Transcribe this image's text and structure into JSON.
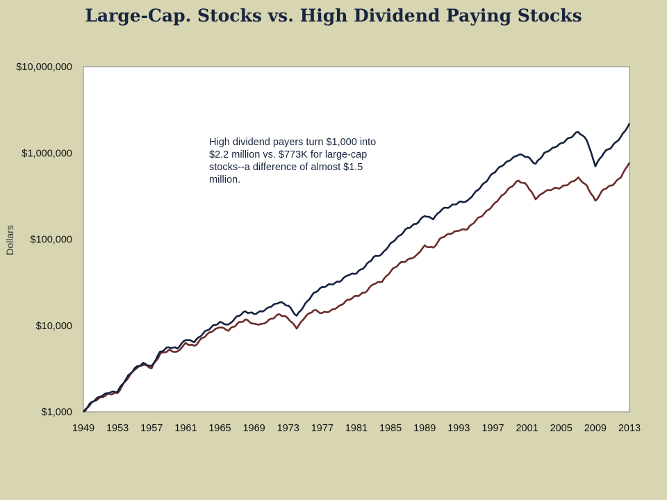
{
  "chart_data": {
    "type": "line",
    "title": "Large-Cap. Stocks vs. High Dividend Paying Stocks",
    "xlabel": "",
    "ylabel": "Dollars",
    "yscale": "log",
    "ylim": [
      1000,
      10000000
    ],
    "xlim": [
      1949,
      2013
    ],
    "x_ticks": [
      "1949",
      "1953",
      "1957",
      "1961",
      "1965",
      "1969",
      "1973",
      "1977",
      "1981",
      "1985",
      "1989",
      "1993",
      "1997",
      "2001",
      "2005",
      "2009",
      "2013"
    ],
    "y_ticks": [
      {
        "value": 1000,
        "label": "$1,000"
      },
      {
        "value": 10000,
        "label": "$10,000"
      },
      {
        "value": 100000,
        "label": "$100,000"
      },
      {
        "value": 1000000,
        "label": "$1,000,000"
      },
      {
        "value": 10000000,
        "label": "$10,000,000"
      }
    ],
    "grid": false,
    "annotation": "High dividend payers turn $1,000 into $2.2 million vs. $773K for large-cap stocks--a difference of almost $1.5 million.",
    "series": [
      {
        "color": "#14223d",
        "points": [
          [
            1949,
            1000
          ],
          [
            1950,
            1300
          ],
          [
            1951,
            1500
          ],
          [
            1952,
            1650
          ],
          [
            1953,
            1700
          ],
          [
            1954,
            2400
          ],
          [
            1955,
            3200
          ],
          [
            1956,
            3700
          ],
          [
            1957,
            3400
          ],
          [
            1958,
            5000
          ],
          [
            1959,
            5600
          ],
          [
            1960,
            5400
          ],
          [
            1961,
            6800
          ],
          [
            1962,
            6400
          ],
          [
            1963,
            8000
          ],
          [
            1964,
            9600
          ],
          [
            1965,
            11000
          ],
          [
            1966,
            10300
          ],
          [
            1967,
            12800
          ],
          [
            1968,
            14600
          ],
          [
            1969,
            13600
          ],
          [
            1970,
            14500
          ],
          [
            1971,
            16500
          ],
          [
            1972,
            18500
          ],
          [
            1973,
            17000
          ],
          [
            1974,
            13000
          ],
          [
            1975,
            18000
          ],
          [
            1976,
            24000
          ],
          [
            1977,
            28000
          ],
          [
            1978,
            30000
          ],
          [
            1979,
            32000
          ],
          [
            1980,
            38000
          ],
          [
            1981,
            40000
          ],
          [
            1982,
            48000
          ],
          [
            1983,
            62000
          ],
          [
            1984,
            68000
          ],
          [
            1985,
            90000
          ],
          [
            1986,
            110000
          ],
          [
            1987,
            135000
          ],
          [
            1988,
            150000
          ],
          [
            1989,
            185000
          ],
          [
            1990,
            170000
          ],
          [
            1991,
            220000
          ],
          [
            1992,
            240000
          ],
          [
            1993,
            270000
          ],
          [
            1994,
            280000
          ],
          [
            1995,
            360000
          ],
          [
            1996,
            450000
          ],
          [
            1997,
            580000
          ],
          [
            1998,
            700000
          ],
          [
            1999,
            820000
          ],
          [
            2000,
            950000
          ],
          [
            2001,
            900000
          ],
          [
            2002,
            750000
          ],
          [
            2003,
            1000000
          ],
          [
            2004,
            1150000
          ],
          [
            2005,
            1300000
          ],
          [
            2006,
            1500000
          ],
          [
            2007,
            1750000
          ],
          [
            2008,
            1400000
          ],
          [
            2009,
            700000
          ],
          [
            2010,
            1000000
          ],
          [
            2011,
            1200000
          ],
          [
            2012,
            1550000
          ],
          [
            2013,
            2200000
          ]
        ]
      },
      {
        "color": "#6b2b2b",
        "points": [
          [
            1949,
            1000
          ],
          [
            1950,
            1300
          ],
          [
            1951,
            1480
          ],
          [
            1952,
            1620
          ],
          [
            1953,
            1650
          ],
          [
            1954,
            2300
          ],
          [
            1955,
            3050
          ],
          [
            1956,
            3500
          ],
          [
            1957,
            3200
          ],
          [
            1958,
            4700
          ],
          [
            1959,
            5200
          ],
          [
            1960,
            5000
          ],
          [
            1961,
            6300
          ],
          [
            1962,
            5800
          ],
          [
            1963,
            7200
          ],
          [
            1964,
            8400
          ],
          [
            1965,
            9500
          ],
          [
            1966,
            8700
          ],
          [
            1967,
            10400
          ],
          [
            1968,
            11800
          ],
          [
            1969,
            10500
          ],
          [
            1970,
            10500
          ],
          [
            1971,
            12000
          ],
          [
            1972,
            13500
          ],
          [
            1973,
            12000
          ],
          [
            1974,
            9200
          ],
          [
            1975,
            12500
          ],
          [
            1976,
            15000
          ],
          [
            1977,
            14000
          ],
          [
            1978,
            15000
          ],
          [
            1979,
            17000
          ],
          [
            1980,
            20000
          ],
          [
            1981,
            22000
          ],
          [
            1982,
            24000
          ],
          [
            1983,
            30000
          ],
          [
            1984,
            32000
          ],
          [
            1985,
            42000
          ],
          [
            1986,
            52000
          ],
          [
            1987,
            58000
          ],
          [
            1988,
            65000
          ],
          [
            1989,
            85000
          ],
          [
            1990,
            80000
          ],
          [
            1991,
            105000
          ],
          [
            1992,
            115000
          ],
          [
            1993,
            125000
          ],
          [
            1994,
            130000
          ],
          [
            1995,
            165000
          ],
          [
            1996,
            200000
          ],
          [
            1997,
            250000
          ],
          [
            1998,
            320000
          ],
          [
            1999,
            400000
          ],
          [
            2000,
            480000
          ],
          [
            2001,
            420000
          ],
          [
            2002,
            290000
          ],
          [
            2003,
            350000
          ],
          [
            2004,
            380000
          ],
          [
            2005,
            400000
          ],
          [
            2006,
            450000
          ],
          [
            2007,
            520000
          ],
          [
            2008,
            420000
          ],
          [
            2009,
            280000
          ],
          [
            2010,
            380000
          ],
          [
            2011,
            420000
          ],
          [
            2012,
            520000
          ],
          [
            2013,
            773000
          ]
        ]
      }
    ]
  }
}
